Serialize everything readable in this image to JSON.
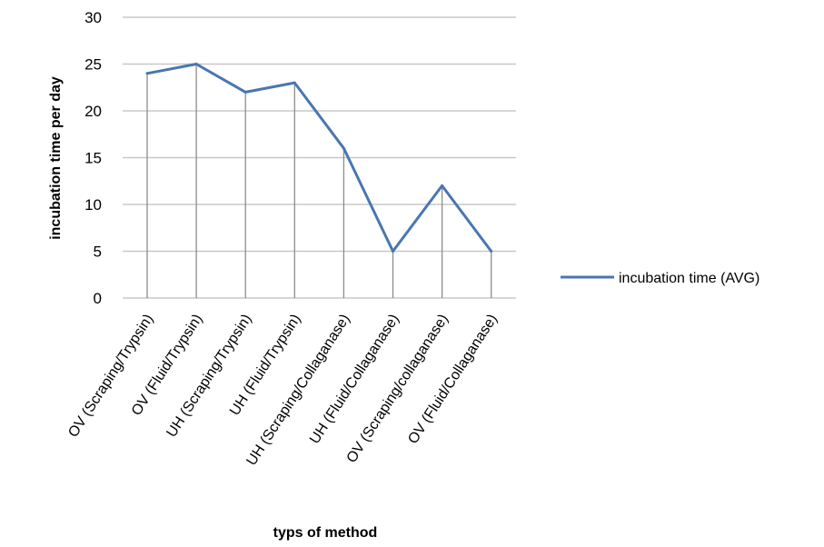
{
  "chart_data": {
    "type": "line",
    "categories": [
      "OV (Scraping/Trypsin)",
      "OV (Fluid/Trypsin)",
      "UH (Scraping/Trypsin)",
      "UH (Fluid/Trypsin)",
      "UH (Scraping/Collaganase)",
      "UH (Fluid/Collaganase)",
      "OV (Scraping/collaganase)",
      "OV (Fluid/Collaganase)"
    ],
    "series": [
      {
        "name": "incubation time (AVG)",
        "values": [
          24,
          25,
          22,
          23,
          16,
          5,
          12,
          5
        ],
        "color": "#4a76b0"
      }
    ],
    "ylim": [
      0,
      30
    ],
    "yticks": [
      0,
      5,
      10,
      15,
      20,
      25,
      30
    ],
    "xlabel": "typs of method",
    "ylabel": "incubation time per day",
    "legend_position": "right",
    "horizontal_grid": true,
    "vertical_drop_lines": true,
    "colors": {
      "grid": "#c8c8c8",
      "drop_line": "#8c8c8c"
    }
  }
}
